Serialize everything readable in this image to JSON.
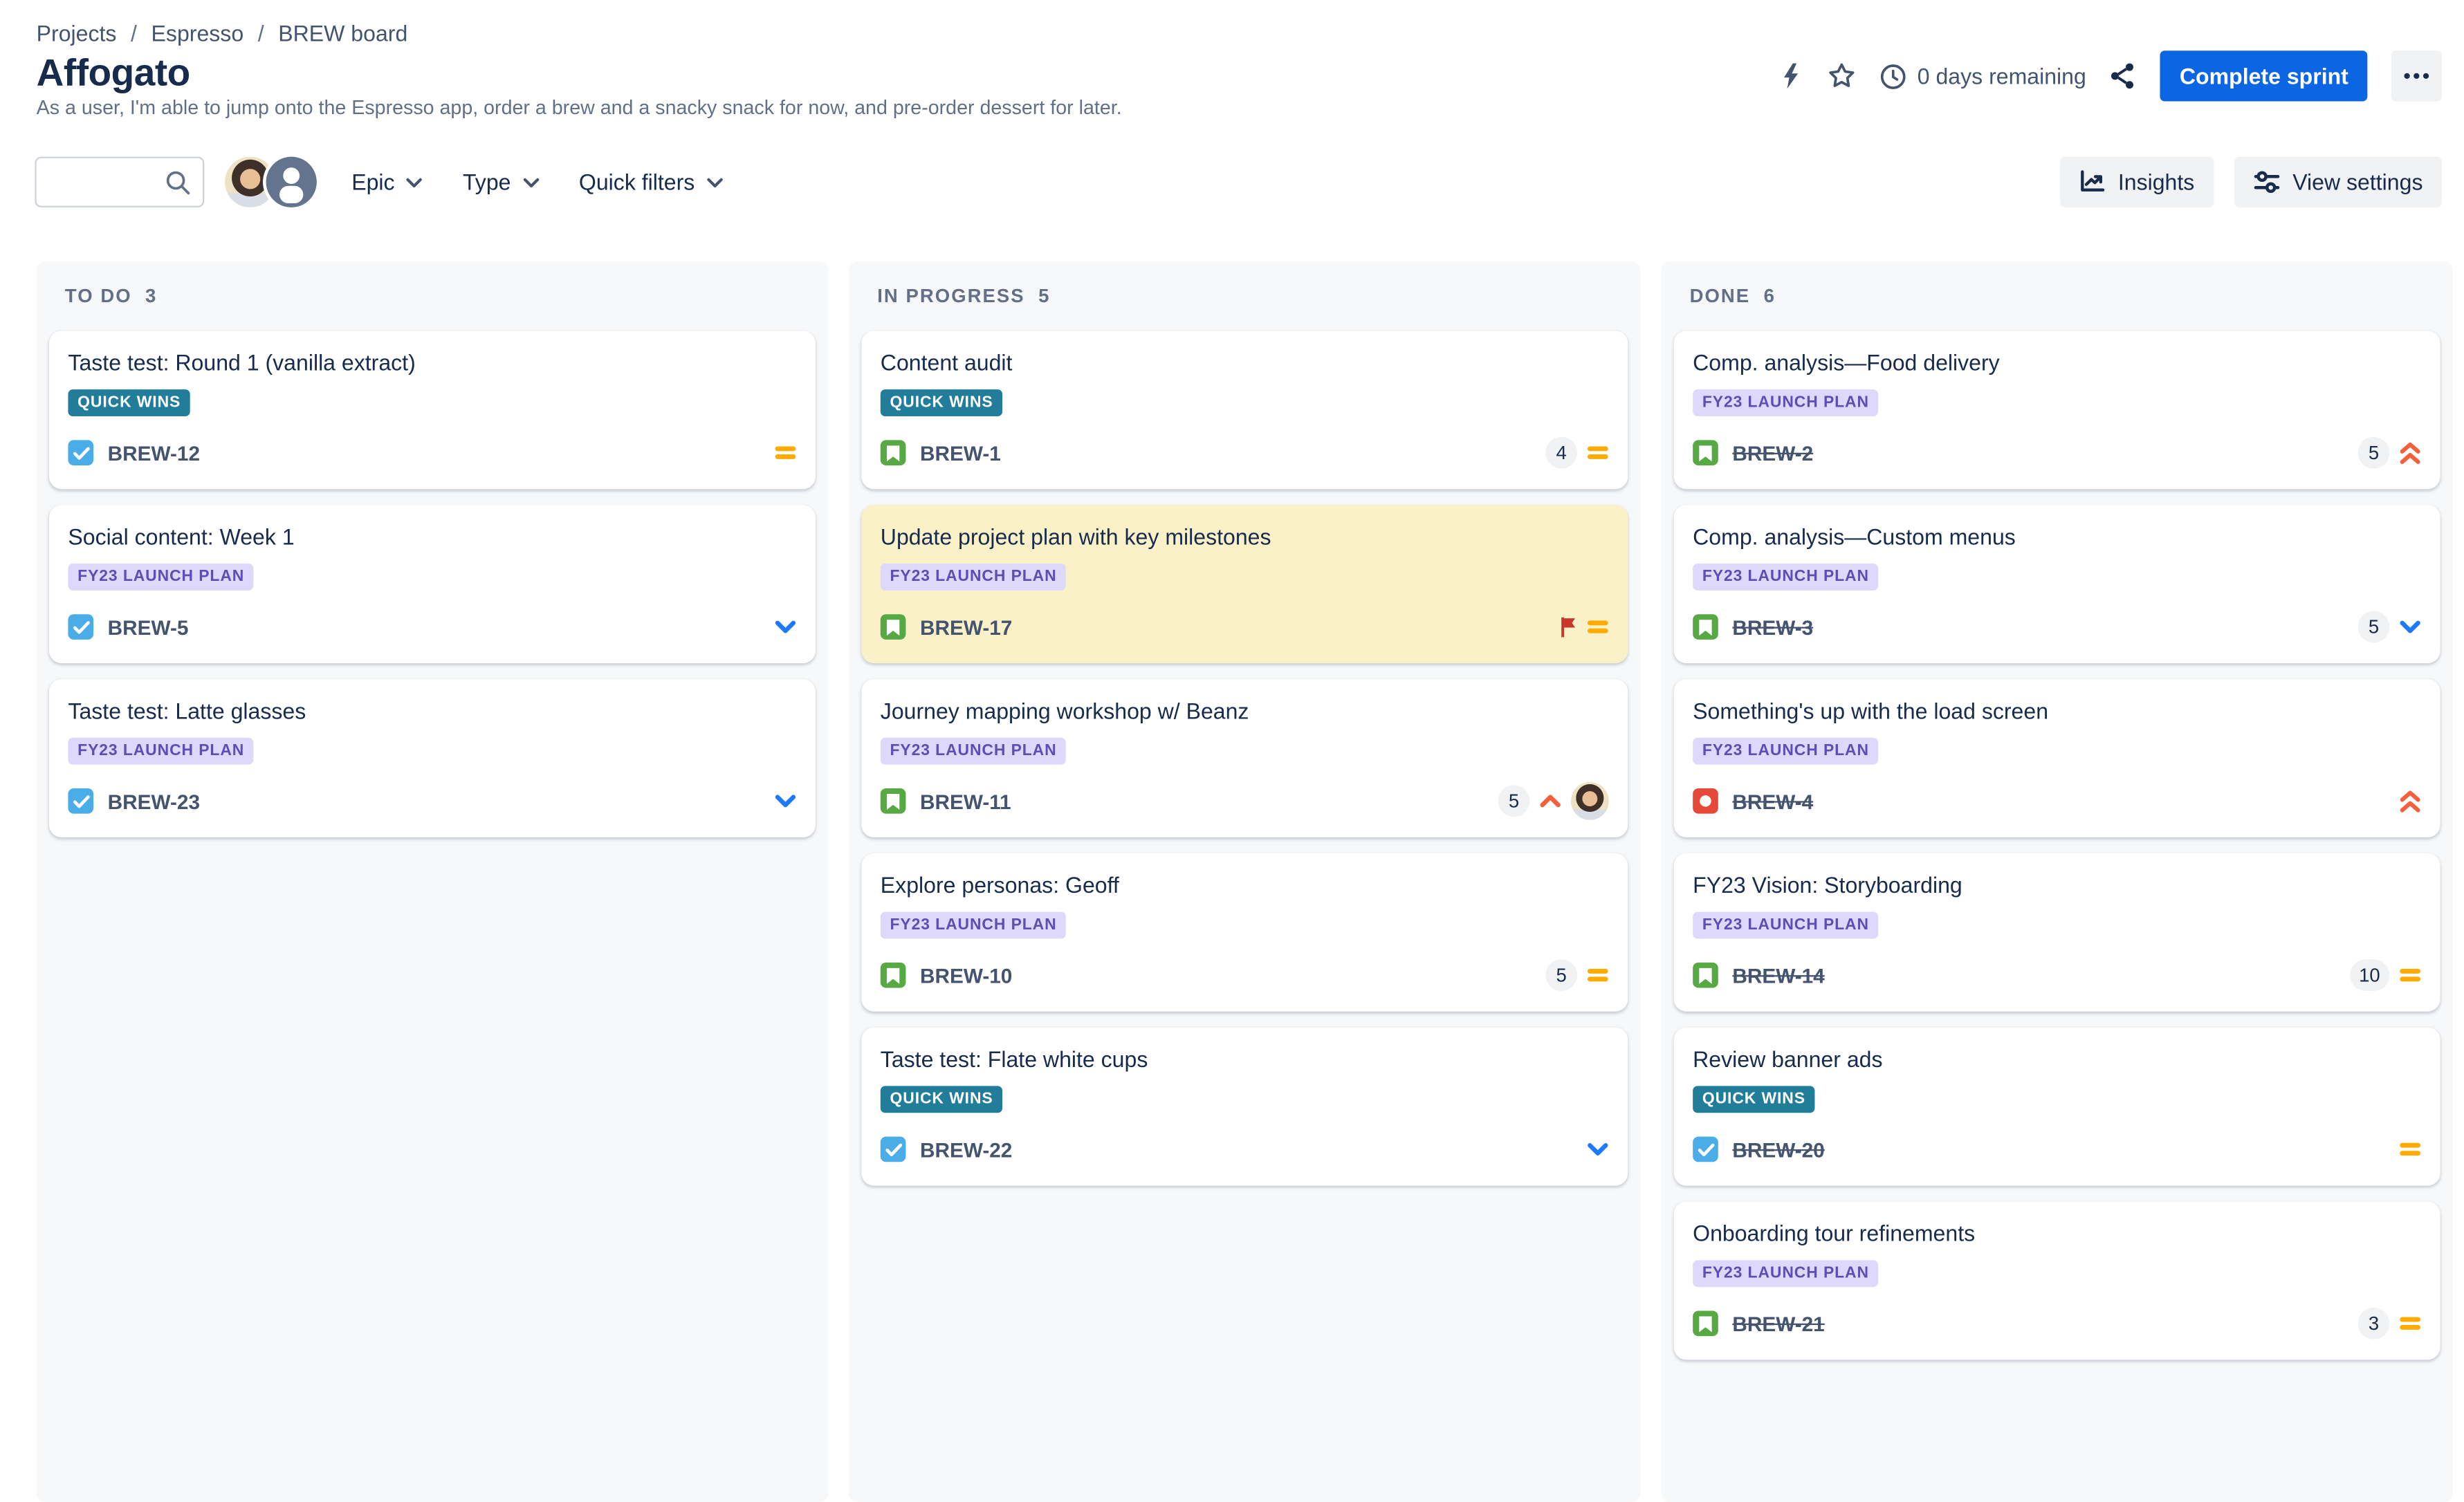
{
  "breadcrumb": {
    "separator": "/",
    "items": [
      "Projects",
      "Espresso",
      "BREW board"
    ]
  },
  "header": {
    "title": "Affogato",
    "subtitle": "As a user, I'm able to jump onto the Espresso app, order a brew and a snacky snack for now, and pre-order dessert for later.",
    "days_remaining": "0 days remaining",
    "complete_sprint_label": "Complete sprint",
    "icons": [
      "lightning-icon",
      "star-icon",
      "clock-icon",
      "share-icon",
      "more-icon"
    ]
  },
  "toolbar": {
    "search": {
      "value": "",
      "placeholder": ""
    },
    "avatars": [
      "photo-avatar",
      "generic-avatar"
    ],
    "filters": [
      {
        "label": "Epic"
      },
      {
        "label": "Type"
      },
      {
        "label": "Quick filters"
      }
    ],
    "insights_label": "Insights",
    "view_settings_label": "View settings"
  },
  "board": {
    "columns": [
      {
        "name": "TO DO",
        "count": 3,
        "cards": [
          {
            "title": "Taste test: Round 1 (vanilla extract)",
            "label": "QUICK WINS",
            "label_style": "quickwins",
            "key": "BREW-12",
            "type": "task",
            "estimate": null,
            "priority": "medium",
            "flagged": false,
            "done": false,
            "assignee": false
          },
          {
            "title": "Social content: Week 1",
            "label": "FY23 LAUNCH PLAN",
            "label_style": "fy23",
            "key": "BREW-5",
            "type": "task",
            "estimate": null,
            "priority": "low",
            "flagged": false,
            "done": false,
            "assignee": false
          },
          {
            "title": "Taste test: Latte glasses",
            "label": "FY23 LAUNCH PLAN",
            "label_style": "fy23",
            "key": "BREW-23",
            "type": "task",
            "estimate": null,
            "priority": "low",
            "flagged": false,
            "done": false,
            "assignee": false
          }
        ]
      },
      {
        "name": "IN PROGRESS",
        "count": 5,
        "cards": [
          {
            "title": "Content audit",
            "label": "QUICK WINS",
            "label_style": "quickwins",
            "key": "BREW-1",
            "type": "story",
            "estimate": "4",
            "priority": "medium",
            "flagged": false,
            "done": false,
            "assignee": false
          },
          {
            "title": "Update project plan with key milestones",
            "label": "FY23 LAUNCH PLAN",
            "label_style": "fy23",
            "key": "BREW-17",
            "type": "story",
            "estimate": null,
            "priority": "medium",
            "flagged": true,
            "done": false,
            "assignee": false
          },
          {
            "title": "Journey mapping workshop w/ Beanz",
            "label": "FY23 LAUNCH PLAN",
            "label_style": "fy23",
            "key": "BREW-11",
            "type": "story",
            "estimate": "5",
            "priority": "high",
            "flagged": false,
            "done": false,
            "assignee": true
          },
          {
            "title": "Explore personas: Geoff",
            "label": "FY23 LAUNCH PLAN",
            "label_style": "fy23",
            "key": "BREW-10",
            "type": "story",
            "estimate": "5",
            "priority": "medium",
            "flagged": false,
            "done": false,
            "assignee": false
          },
          {
            "title": "Taste test: Flate white cups",
            "label": "QUICK WINS",
            "label_style": "quickwins",
            "key": "BREW-22",
            "type": "task",
            "estimate": null,
            "priority": "low",
            "flagged": false,
            "done": false,
            "assignee": false
          }
        ]
      },
      {
        "name": "DONE",
        "count": 6,
        "cards": [
          {
            "title": "Comp. analysis—Food delivery",
            "label": "FY23 LAUNCH PLAN",
            "label_style": "fy23",
            "key": "BREW-2",
            "type": "story",
            "estimate": "5",
            "priority": "highest",
            "flagged": false,
            "done": true,
            "assignee": false
          },
          {
            "title": "Comp. analysis—Custom menus",
            "label": "FY23 LAUNCH PLAN",
            "label_style": "fy23",
            "key": "BREW-3",
            "type": "story",
            "estimate": "5",
            "priority": "low",
            "flagged": false,
            "done": true,
            "assignee": false
          },
          {
            "title": "Something's up with the load screen",
            "label": "FY23 LAUNCH PLAN",
            "label_style": "fy23",
            "key": "BREW-4",
            "type": "bug",
            "estimate": null,
            "priority": "highest",
            "flagged": false,
            "done": true,
            "assignee": false
          },
          {
            "title": "FY23 Vision: Storyboarding",
            "label": "FY23 LAUNCH PLAN",
            "label_style": "fy23",
            "key": "BREW-14",
            "type": "story",
            "estimate": "10",
            "priority": "medium",
            "flagged": false,
            "done": true,
            "assignee": false
          },
          {
            "title": "Review banner ads",
            "label": "QUICK WINS",
            "label_style": "quickwins",
            "key": "BREW-20",
            "type": "task",
            "estimate": null,
            "priority": "medium",
            "flagged": false,
            "done": true,
            "assignee": false
          },
          {
            "title": "Onboarding tour refinements",
            "label": "FY23 LAUNCH PLAN",
            "label_style": "fy23",
            "key": "BREW-21",
            "type": "story",
            "estimate": "3",
            "priority": "medium",
            "flagged": false,
            "done": true,
            "assignee": false
          }
        ]
      }
    ]
  },
  "colors": {
    "accent": "#0C66E4",
    "title_text": "#172B4D",
    "muted_text": "#44546F",
    "column_bg": "#F7F8F9",
    "neutral_button_bg": "#F1F2F4",
    "flagged_card_bg": "#FBF1C8",
    "quick_wins_badge": "#227D9B",
    "fy23_badge_bg": "#DFD8FD",
    "fy23_badge_text": "#5E4DB2",
    "task_icon": "#4BADE8",
    "story_icon": "#57A944",
    "bug_icon": "#E5493A",
    "priority_medium": "#FFAB00",
    "priority_low": "#1D7AFC",
    "priority_high": "#F4603C",
    "flag_icon": "#C9372C"
  }
}
